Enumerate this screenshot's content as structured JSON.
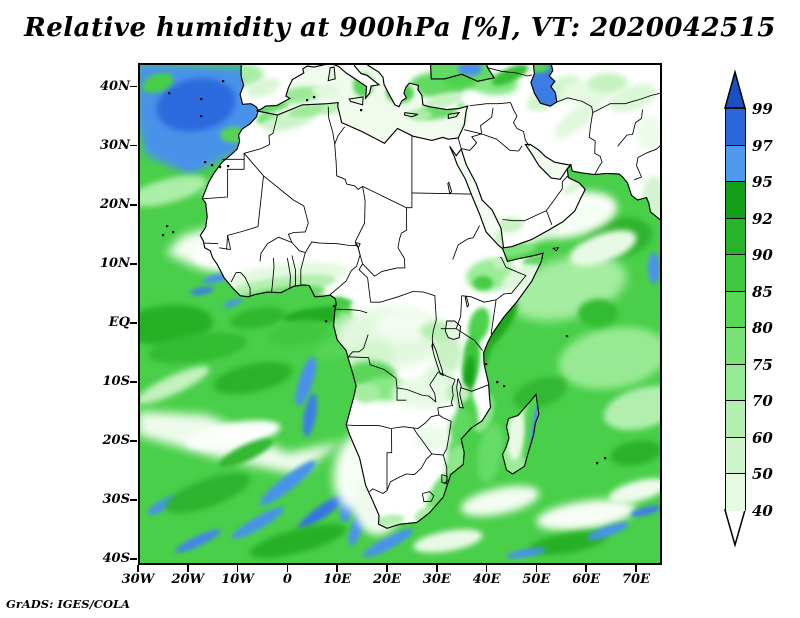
{
  "title": "Relative humidity at 900hPa [%], VT: 2020042515",
  "attribution": "GrADS: IGES/COLA",
  "axes": {
    "lat_ticks": [
      "40N",
      "30N",
      "20N",
      "10N",
      "EQ",
      "10S",
      "20S",
      "30S",
      "40S"
    ],
    "lon_ticks": [
      "30W",
      "20W",
      "10W",
      "0",
      "10E",
      "20E",
      "30E",
      "40E",
      "50E",
      "60E",
      "70E"
    ]
  },
  "colorbar": {
    "tick_labels": [
      "99",
      "97",
      "95",
      "92",
      "90",
      "85",
      "80",
      "75",
      "70",
      "60",
      "50",
      "40"
    ],
    "segment_colors_top_to_bottom": [
      "#2b66dc",
      "#4f9aec",
      "#12a01a",
      "#28b42a",
      "#3ec83e",
      "#57d857",
      "#79e279",
      "#96ea94",
      "#b3f0af",
      "#cef5ca",
      "#e5fae1"
    ],
    "above_max_color": "#1c4fc2",
    "below_min_color": "#ffffff"
  },
  "map_colors": {
    "ocean_green": "#49cf49",
    "land_dry_white": "#ffffff",
    "high_humidity_blue": "#4a92ea",
    "deep_humidity_blue": "#2c6ade",
    "dark_green": "#1fa824",
    "coastline": "#000000"
  }
}
